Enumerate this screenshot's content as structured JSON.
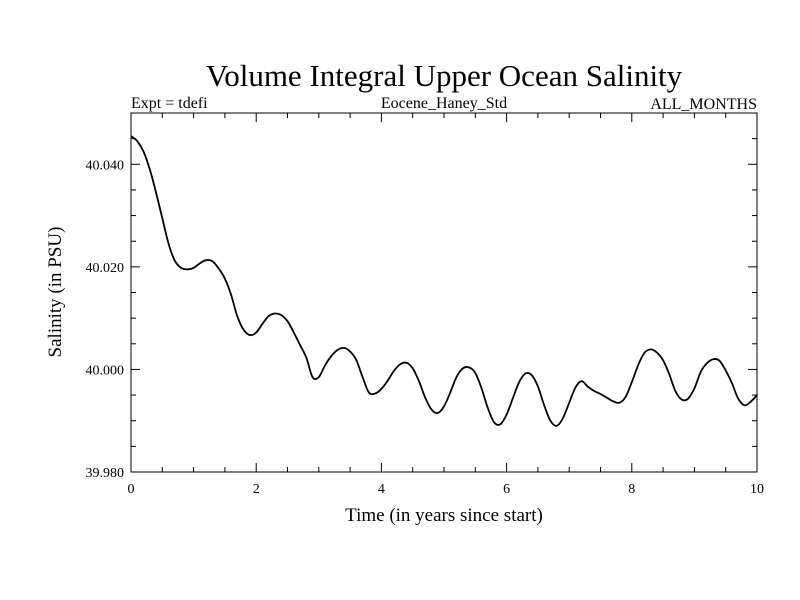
{
  "chart_data": {
    "type": "line",
    "title": "Volume Integral Upper Ocean Salinity",
    "subtitle_left": "Expt = tdefi",
    "subtitle_center": "Eocene_Haney_Std",
    "subtitle_right": "ALL_MONTHS",
    "xlabel": "Time (in years since start)",
    "ylabel": "Salinity (in PSU)",
    "xlim": [
      0,
      10
    ],
    "ylim": [
      39.98,
      40.05
    ],
    "x_ticks": [
      0,
      2,
      4,
      6,
      8,
      10
    ],
    "x_tick_labels": [
      "0",
      "2",
      "4",
      "6",
      "8",
      "10"
    ],
    "y_ticks": [
      39.98,
      40.0,
      40.02,
      40.04
    ],
    "y_tick_labels": [
      "39.980",
      "40.000",
      "40.020",
      "40.040"
    ],
    "grid": false,
    "series": [
      {
        "x": [
          0,
          0.1,
          0.2,
          0.3,
          0.4,
          0.5,
          0.6,
          0.7,
          0.8,
          0.9,
          1.0,
          1.1,
          1.2,
          1.3,
          1.4,
          1.5,
          1.6,
          1.7,
          1.8,
          1.9,
          2.0,
          2.1,
          2.2,
          2.3,
          2.4,
          2.5,
          2.6,
          2.7,
          2.8,
          2.9,
          3.0,
          3.1,
          3.2,
          3.3,
          3.4,
          3.5,
          3.6,
          3.7,
          3.8,
          3.9,
          4.0,
          4.1,
          4.2,
          4.3,
          4.4,
          4.5,
          4.6,
          4.7,
          4.8,
          4.9,
          5.0,
          5.1,
          5.2,
          5.3,
          5.4,
          5.5,
          5.6,
          5.7,
          5.8,
          5.9,
          6.0,
          6.1,
          6.2,
          6.3,
          6.4,
          6.5,
          6.6,
          6.7,
          6.8,
          6.9,
          7.0,
          7.1,
          7.2,
          7.3,
          7.4,
          7.5,
          7.6,
          7.7,
          7.8,
          7.9,
          8.0,
          8.1,
          8.2,
          8.3,
          8.4,
          8.5,
          8.6,
          8.7,
          8.8,
          8.9,
          9.0,
          9.1,
          9.2,
          9.3,
          9.4,
          9.5,
          9.6,
          9.7,
          9.8,
          9.9,
          10.0
        ],
        "y": [
          40.0455,
          40.0445,
          40.0425,
          40.039,
          40.0345,
          40.0295,
          40.0245,
          40.0212,
          40.0198,
          40.0195,
          40.0198,
          40.0207,
          40.0213,
          40.0211,
          40.0197,
          40.0177,
          40.0145,
          40.0103,
          40.0077,
          40.0067,
          40.0072,
          40.0089,
          40.0104,
          40.0109,
          40.0106,
          40.0094,
          40.0072,
          40.0048,
          40.0023,
          39.9985,
          39.9985,
          40.0008,
          40.0026,
          40.0038,
          40.0042,
          40.0035,
          40.0018,
          39.9985,
          39.9955,
          39.9953,
          39.9962,
          39.9978,
          39.9997,
          40.001,
          40.0013,
          40.0002,
          39.9977,
          39.9945,
          39.9922,
          39.9915,
          39.9928,
          39.9955,
          39.9985,
          40.0002,
          40.0004,
          39.9993,
          39.9963,
          39.9925,
          39.9897,
          39.9893,
          39.9912,
          39.9944,
          39.9975,
          39.9992,
          39.9989,
          39.9967,
          39.993,
          39.99,
          39.989,
          39.9905,
          39.9935,
          39.9965,
          39.9977,
          39.9966,
          39.9958,
          39.9952,
          39.9945,
          39.9938,
          39.9935,
          39.9946,
          39.9975,
          40.0008,
          40.0032,
          40.0039,
          40.0033,
          40.0018,
          39.999,
          39.9957,
          39.9941,
          39.9943,
          39.9963,
          39.9995,
          40.0012,
          40.002,
          40.0017,
          39.9998,
          39.9973,
          39.9943,
          39.993,
          39.9937,
          39.995
        ]
      }
    ]
  }
}
